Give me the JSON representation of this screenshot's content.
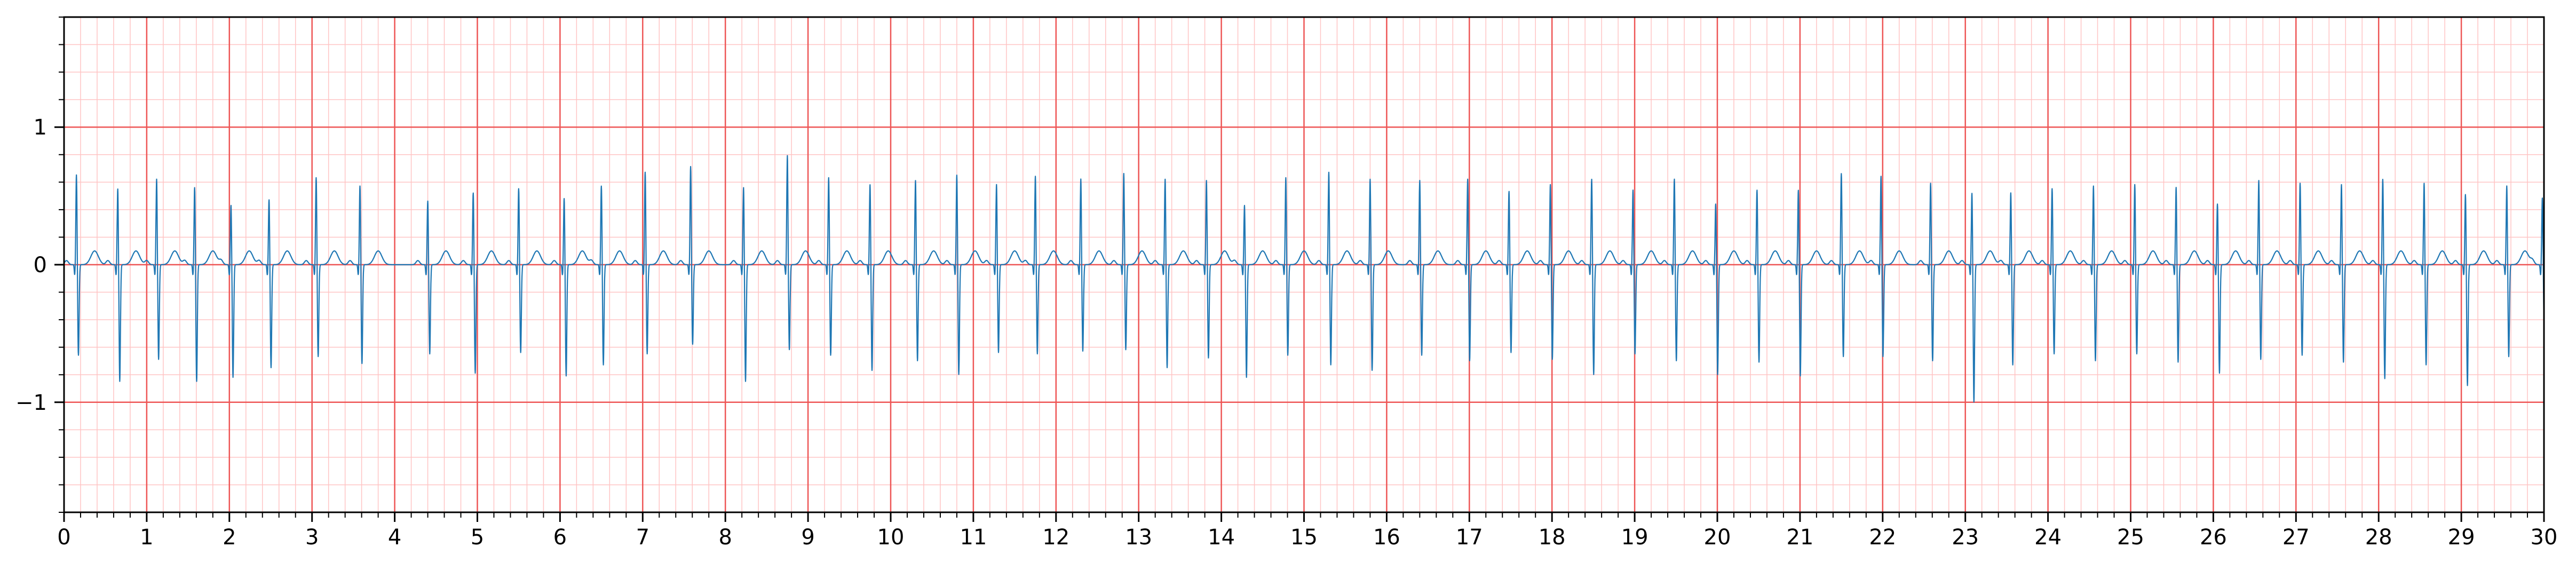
{
  "chart_data": {
    "type": "line",
    "title": "",
    "xlabel": "",
    "ylabel": "",
    "xlim": [
      0,
      30
    ],
    "ylim": [
      -1.8,
      1.8
    ],
    "x_ticks": [
      0,
      1,
      2,
      3,
      4,
      5,
      6,
      7,
      8,
      9,
      10,
      11,
      12,
      13,
      14,
      15,
      16,
      17,
      18,
      19,
      20,
      21,
      22,
      23,
      24,
      25,
      26,
      27,
      28,
      29,
      30
    ],
    "x_tick_labels": [
      "0",
      "1",
      "2",
      "3",
      "4",
      "5",
      "6",
      "7",
      "8",
      "9",
      "10",
      "11",
      "12",
      "13",
      "14",
      "15",
      "16",
      "17",
      "18",
      "19",
      "20",
      "21",
      "22",
      "23",
      "24",
      "25",
      "26",
      "27",
      "28",
      "29",
      "30"
    ],
    "y_ticks": [
      -1,
      0,
      1
    ],
    "y_tick_labels": [
      "−1",
      "0",
      "1"
    ],
    "grid": true,
    "grid_style": "ecg paper (major 1 s / 1 unit, minor 0.2 s / 0.2 unit)",
    "series": [
      {
        "color": "#1f77b4",
        "x": [
          0.15,
          0.65,
          1.12,
          1.58,
          2.02,
          2.48,
          3.05,
          3.58,
          4.4,
          4.95,
          5.5,
          6.05,
          6.5,
          7.03,
          7.58,
          8.22,
          8.75,
          9.25,
          9.75,
          10.3,
          10.8,
          11.28,
          11.75,
          12.3,
          12.82,
          13.32,
          13.82,
          14.28,
          14.78,
          15.3,
          15.8,
          16.4,
          16.98,
          17.48,
          17.98,
          18.48,
          18.98,
          19.48,
          19.98,
          20.48,
          20.98,
          21.5,
          21.98,
          22.58,
          23.08,
          23.55,
          24.05,
          24.55,
          25.05,
          25.55,
          26.05,
          26.55,
          27.05,
          27.55,
          28.05,
          28.55,
          29.05,
          29.55,
          29.98
        ],
        "r_peaks": [
          0.66,
          0.56,
          0.63,
          0.57,
          0.44,
          0.48,
          0.64,
          0.58,
          0.47,
          0.53,
          0.56,
          0.49,
          0.58,
          0.68,
          0.72,
          0.57,
          0.8,
          0.64,
          0.59,
          0.62,
          0.66,
          0.59,
          0.65,
          0.63,
          0.67,
          0.63,
          0.62,
          0.44,
          0.64,
          0.68,
          0.63,
          0.62,
          0.63,
          0.54,
          0.59,
          0.63,
          0.55,
          0.63,
          0.45,
          0.55,
          0.55,
          0.67,
          0.65,
          0.6,
          0.53,
          0.53,
          0.56,
          0.58,
          0.59,
          0.57,
          0.45,
          0.62,
          0.6,
          0.59,
          0.63,
          0.6,
          0.52,
          0.58,
          0.49
        ],
        "s_troughs": [
          -0.66,
          -0.85,
          -0.69,
          -0.85,
          -0.82,
          -0.75,
          -0.67,
          -0.72,
          -0.65,
          -0.79,
          -0.64,
          -0.81,
          -0.73,
          -0.65,
          -0.58,
          -0.85,
          -0.62,
          -0.66,
          -0.77,
          -0.7,
          -0.8,
          -0.64,
          -0.65,
          -0.63,
          -0.62,
          -0.75,
          -0.68,
          -0.82,
          -0.66,
          -0.73,
          -0.77,
          -0.66,
          -0.7,
          -0.64,
          -0.69,
          -0.8,
          -0.65,
          -0.7,
          -0.8,
          -0.71,
          -0.81,
          -0.67,
          -0.67,
          -0.7,
          -1.0,
          -0.73,
          -0.65,
          -0.7,
          -0.65,
          -0.71,
          -0.79,
          -0.69,
          -0.66,
          -0.71,
          -0.83,
          -0.73,
          -0.88,
          -0.67,
          -0.5
        ],
        "t_wave_amplitude": 0.1,
        "baseline": 0
      }
    ]
  }
}
